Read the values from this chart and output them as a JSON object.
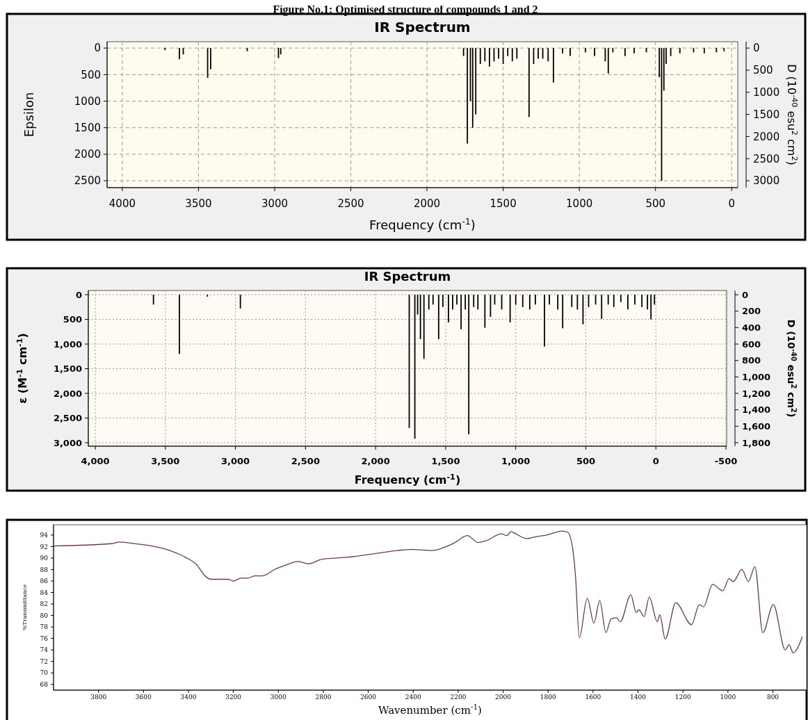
{
  "chart_data": [
    {
      "type": "bar",
      "title": "IR Spectrum",
      "annotations": [
        "Figure No.1: Optimised structure of compounds 1 and 2"
      ],
      "xlabel": "Frequency (cm$^{-1}$)",
      "ylabel": "Epsilon",
      "y2label": "D (10$^{-40}$ esu$^{2}$ cm$^{2}$)",
      "grid": true,
      "line_style": "dashed",
      "color": "#000000",
      "x": [
        3720,
        3625,
        3600,
        3440,
        3420,
        3180,
        2975,
        2960,
        1760,
        1735,
        1715,
        1700,
        1680,
        1650,
        1620,
        1590,
        1560,
        1530,
        1500,
        1470,
        1440,
        1410,
        1330,
        1300,
        1270,
        1240,
        1205,
        1170,
        1110,
        1060,
        960,
        900,
        830,
        810,
        780,
        700,
        640,
        560,
        475,
        460,
        445,
        430,
        400,
        340,
        250,
        180,
        100,
        50
      ],
      "values": [
        40,
        210,
        120,
        560,
        400,
        60,
        190,
        120,
        150,
        1800,
        1000,
        1500,
        1250,
        300,
        250,
        350,
        250,
        200,
        300,
        150,
        250,
        200,
        1300,
        300,
        200,
        200,
        250,
        650,
        100,
        150,
        80,
        150,
        250,
        480,
        80,
        150,
        100,
        80,
        550,
        2500,
        800,
        300,
        150,
        100,
        80,
        100,
        80,
        60
      ],
      "xlim": [
        4100,
        -40
      ],
      "xticks": [
        4000,
        3500,
        3000,
        2500,
        2000,
        1500,
        1000,
        500,
        0
      ],
      "ylim": [
        2630,
        -120
      ],
      "yticks": [
        0,
        500,
        1000,
        1500,
        2000,
        2500
      ],
      "y2lim": [
        3156,
        -144
      ],
      "y2ticks": [
        0,
        500,
        1000,
        1500,
        2000,
        2500,
        3000
      ]
    },
    {
      "type": "bar",
      "title": "IR Spectrum",
      "xlabel": "Frequency (cm$^{-1}$)",
      "ylabel": "ε (M$^{-1}$ cm$^{-1}$)",
      "y2label": "D (10$^{-40}$ esu$^{2}$ cm$^{2}$)",
      "grid": true,
      "line_style": "dotted",
      "color": "#000000",
      "x": [
        3585,
        3400,
        3200,
        2965,
        1760,
        1720,
        1700,
        1680,
        1655,
        1620,
        1590,
        1550,
        1520,
        1480,
        1450,
        1420,
        1390,
        1360,
        1335,
        1300,
        1270,
        1220,
        1180,
        1150,
        1100,
        1040,
        1000,
        950,
        900,
        860,
        795,
        760,
        700,
        665,
        600,
        560,
        520,
        480,
        430,
        387,
        340,
        300,
        250,
        200,
        150,
        100,
        60,
        35,
        10
      ],
      "values": [
        200,
        1200,
        40,
        280,
        2700,
        2920,
        400,
        900,
        1300,
        300,
        200,
        900,
        250,
        560,
        300,
        200,
        700,
        300,
        2830,
        250,
        300,
        670,
        450,
        200,
        300,
        560,
        200,
        250,
        300,
        200,
        1050,
        200,
        300,
        680,
        250,
        300,
        600,
        250,
        200,
        490,
        200,
        250,
        150,
        300,
        200,
        250,
        300,
        500,
        200
      ],
      "xlim": [
        4050,
        -505
      ],
      "xticks": [
        {
          "value": 4000,
          "label": "4,000"
        },
        {
          "value": 3500,
          "label": "3,500"
        },
        {
          "value": 3000,
          "label": "3,000"
        },
        {
          "value": 2500,
          "label": "2,500"
        },
        {
          "value": 2000,
          "label": "2,000"
        },
        {
          "value": 1500,
          "label": "1,500"
        },
        {
          "value": 1000,
          "label": "1,000"
        },
        500,
        0,
        -500
      ],
      "ylim": [
        3070,
        -85
      ],
      "yticks": [
        0,
        500,
        {
          "value": 1000,
          "label": "1,000"
        },
        {
          "value": 1500,
          "label": "1,500"
        },
        {
          "value": 2000,
          "label": "2,000"
        },
        {
          "value": 2500,
          "label": "2,500"
        },
        {
          "value": 3000,
          "label": "3,000"
        }
      ],
      "y2lim": [
        1842,
        -51
      ],
      "y2ticks": [
        0,
        200,
        400,
        600,
        800,
        {
          "value": 1000,
          "label": "1,000"
        },
        {
          "value": 1200,
          "label": "1,200"
        },
        {
          "value": 1400,
          "label": "1,400"
        },
        {
          "value": 1600,
          "label": "1,600"
        },
        {
          "value": 1800,
          "label": "1,800"
        }
      ]
    },
    {
      "type": "line",
      "xlabel": "Wavenumber (cm$^{-1}$)",
      "ylabel": "%Transmittance",
      "grid": false,
      "color": "#6b3a4a",
      "x": [
        4000,
        3741,
        3706,
        3659,
        3506,
        3412,
        3365,
        3324,
        3300,
        3224,
        3200,
        3165,
        3135,
        3106,
        3071,
        3012,
        2965,
        2912,
        2865,
        2806,
        2741,
        2706,
        2653,
        2565,
        2471,
        2406,
        2318,
        2288,
        2218,
        2159,
        2112,
        2077,
        2007,
        1983,
        1966,
        1948,
        1895,
        1842,
        1807,
        1737,
        1713,
        1690,
        1678,
        1661,
        1626,
        1596,
        1570,
        1543,
        1520,
        1496,
        1479,
        1432,
        1408,
        1396,
        1373,
        1350,
        1314,
        1303,
        1279,
        1232,
        1162,
        1127,
        1109,
        1068,
        1023,
        995,
        976,
        938,
        909,
        880,
        845,
        798,
        745,
        728,
        710,
        669
      ],
      "values": [
        92.1,
        92.5,
        92.8,
        92.6,
        91.6,
        90.1,
        88.9,
        86.8,
        86.3,
        86.3,
        86.0,
        86.5,
        86.5,
        86.9,
        86.9,
        88.1,
        88.8,
        89.4,
        89.0,
        89.8,
        90.0,
        90.1,
        90.3,
        90.8,
        91.3,
        91.5,
        91.3,
        91.5,
        92.6,
        93.9,
        92.7,
        93.0,
        94.2,
        93.9,
        94.6,
        94.3,
        93.4,
        93.8,
        94.0,
        94.7,
        94.5,
        91.5,
        86.8,
        76.1,
        83.0,
        78.7,
        82.6,
        77.0,
        79.4,
        79.6,
        78.9,
        83.6,
        80.5,
        81.0,
        79.8,
        83.2,
        78.9,
        80.1,
        75.9,
        82.2,
        78.4,
        81.9,
        81.5,
        85.4,
        84.3,
        86.4,
        85.9,
        88.0,
        85.9,
        88.5,
        77.0,
        81.9,
        74.0,
        74.9,
        73.5,
        76.3
      ],
      "xlim": [
        4000,
        650
      ],
      "xticks": [
        3800,
        3600,
        3400,
        3200,
        3000,
        2800,
        2600,
        2400,
        2200,
        2000,
        1800,
        1600,
        1400,
        1200,
        1000,
        800
      ],
      "ylim": [
        67,
        95.8
      ],
      "yticks": [
        94,
        92,
        90,
        88,
        86,
        84,
        82,
        80,
        78,
        76,
        74,
        72,
        70,
        68
      ]
    }
  ]
}
